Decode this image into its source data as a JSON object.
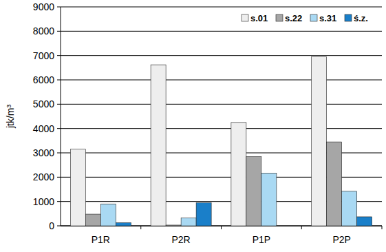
{
  "chart_data": {
    "type": "bar",
    "y_label": "jtk/m³",
    "categories": [
      "P1R",
      "P2R",
      "P1P",
      "P2P"
    ],
    "series": [
      {
        "name": "s.01",
        "color": "#eeeeee",
        "values": [
          3150,
          6620,
          4250,
          6950
        ]
      },
      {
        "name": "s.22",
        "color": "#a6a6a6",
        "values": [
          480,
          30,
          2850,
          3450
        ]
      },
      {
        "name": "s.31",
        "color": "#a9d9f3",
        "values": [
          900,
          320,
          2170,
          1420
        ]
      },
      {
        "name": "ś.z.",
        "color": "#1a7fc9",
        "values": [
          130,
          950,
          0,
          370
        ]
      }
    ],
    "ylim": [
      0,
      9000
    ],
    "yticks": [
      0,
      1000,
      2000,
      3000,
      4000,
      5000,
      6000,
      7000,
      8000,
      9000
    ],
    "grid": true,
    "legend": "upper right"
  }
}
